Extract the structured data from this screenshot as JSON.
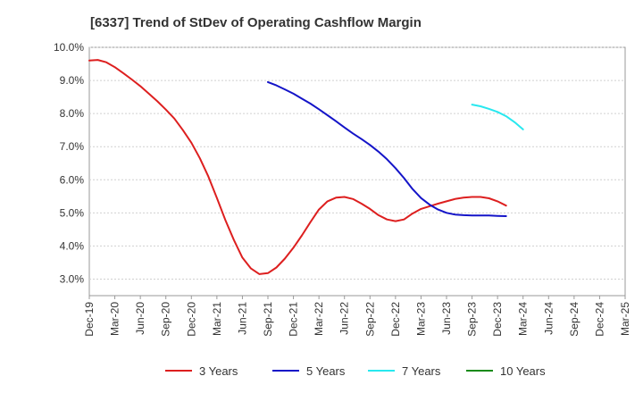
{
  "chart_data": {
    "type": "line",
    "title": "[6337]  Trend of StDev of Operating Cashflow Margin",
    "xlabel": "",
    "ylabel": "",
    "ylim": [
      2.5,
      10.0
    ],
    "y_ticks": [
      "3.0%",
      "4.0%",
      "5.0%",
      "6.0%",
      "7.0%",
      "8.0%",
      "9.0%",
      "10.0%"
    ],
    "y_tick_values": [
      3,
      4,
      5,
      6,
      7,
      8,
      9,
      10
    ],
    "x_ticks": [
      "Dec-19",
      "Mar-20",
      "Jun-20",
      "Sep-20",
      "Dec-20",
      "Mar-21",
      "Jun-21",
      "Sep-21",
      "Dec-21",
      "Mar-22",
      "Jun-22",
      "Sep-22",
      "Dec-22",
      "Mar-23",
      "Jun-23",
      "Sep-23",
      "Dec-23",
      "Mar-24",
      "Jun-24",
      "Sep-24",
      "Dec-24",
      "Mar-25"
    ],
    "grid": "horizontal",
    "legend_position": "bottom",
    "series": [
      {
        "name": "3 Years",
        "color": "#dd1f1f",
        "start_index": 0,
        "values": [
          9.6,
          9.62,
          9.55,
          9.4,
          9.22,
          9.03,
          8.83,
          8.6,
          8.37,
          8.12,
          7.85,
          7.5,
          7.12,
          6.65,
          6.1,
          5.45,
          4.78,
          4.18,
          3.65,
          3.32,
          3.15,
          3.18,
          3.35,
          3.62,
          3.95,
          4.32,
          4.72,
          5.1,
          5.35,
          5.46,
          5.48,
          5.42,
          5.28,
          5.12,
          4.93,
          4.8,
          4.75,
          4.8,
          4.98,
          5.12,
          5.2,
          5.28,
          5.35,
          5.42,
          5.46,
          5.48,
          5.48,
          5.44,
          5.35,
          5.22
        ]
      },
      {
        "name": "5 Years",
        "color": "#1414c8",
        "start_index": 21,
        "values": [
          8.95,
          8.85,
          8.73,
          8.6,
          8.45,
          8.3,
          8.13,
          7.95,
          7.77,
          7.58,
          7.4,
          7.23,
          7.05,
          6.85,
          6.62,
          6.35,
          6.05,
          5.72,
          5.45,
          5.25,
          5.1,
          5.0,
          4.95,
          4.93,
          4.92,
          4.92,
          4.92,
          4.91,
          4.9
        ]
      },
      {
        "name": "7 Years",
        "color": "#28e8ef",
        "start_index": 45,
        "values": [
          8.27,
          8.22,
          8.14,
          8.05,
          7.92,
          7.74,
          7.52
        ]
      },
      {
        "name": "10 Years",
        "color": "#1a8a1a",
        "start_index": 0,
        "values": []
      }
    ]
  }
}
